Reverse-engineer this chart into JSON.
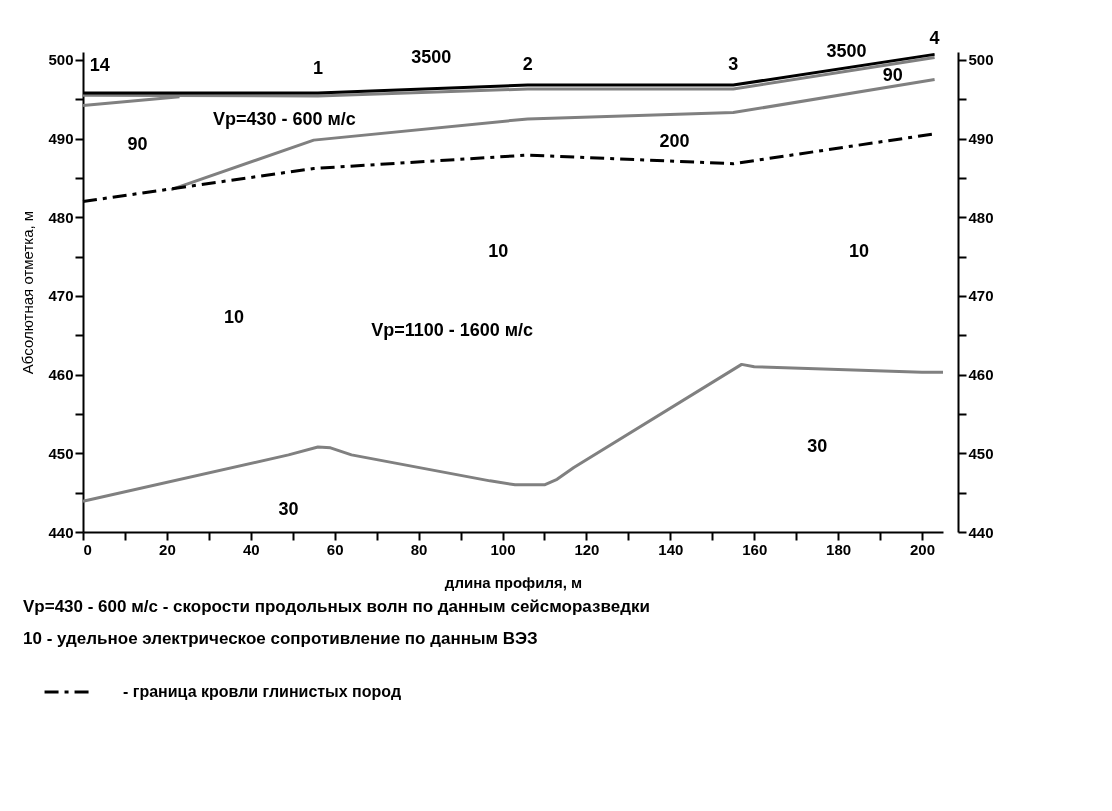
{
  "chart_data": {
    "type": "line",
    "xlabel": "длина профиля, м",
    "ylabel": "Абсолютная отметка, м",
    "xlim": [
      0,
      205
    ],
    "ylim": [
      440,
      501
    ],
    "y2lim": [
      440,
      501
    ],
    "xticks": [
      0,
      {
        "value": 10,
        "label": null
      },
      20,
      {
        "value": 30,
        "label": null
      },
      40,
      {
        "value": 50,
        "label": null
      },
      60,
      {
        "value": 70,
        "label": null
      },
      80,
      {
        "value": 90,
        "label": null
      },
      100,
      {
        "value": 110,
        "label": null
      },
      120,
      {
        "value": 130,
        "label": null
      },
      140,
      {
        "value": 150,
        "label": null
      },
      160,
      {
        "value": 170,
        "label": null
      },
      180,
      {
        "value": 190,
        "label": null
      },
      200
    ],
    "yticks": [
      440,
      {
        "value": 445,
        "label": null
      },
      450,
      {
        "value": 455,
        "label": null
      },
      460,
      {
        "value": 465,
        "label": null
      },
      470,
      {
        "value": 475,
        "label": null
      },
      480,
      {
        "value": 485,
        "label": null
      },
      490,
      {
        "value": 495,
        "label": null
      },
      500
    ],
    "y2ticks": [
      440,
      {
        "value": 445,
        "label": null
      },
      450,
      {
        "value": 455,
        "label": null
      },
      460,
      {
        "value": 465,
        "label": null
      },
      470,
      {
        "value": 475,
        "label": null
      },
      480,
      {
        "value": 485,
        "label": null
      },
      490,
      {
        "value": 495,
        "label": null
      },
      500
    ],
    "grid": false,
    "legend": "bottom",
    "marker": "none",
    "series": [
      {
        "color": "#000000",
        "axis": "y2",
        "line_style": "solid",
        "x": [
          0,
          56,
          106,
          155,
          203
        ],
        "values": [
          495.8,
          495.8,
          496.8,
          496.8,
          500.7
        ]
      },
      {
        "color": "#808080",
        "line_style": "solid",
        "x": [
          0,
          56,
          106,
          155,
          203
        ],
        "values": [
          495.5,
          495.4,
          496.3,
          496.3,
          500.3
        ]
      },
      {
        "color": "#808080",
        "line_style": "solid",
        "x": [
          0,
          23
        ],
        "values": [
          494.2,
          495.3
        ]
      },
      {
        "color": "#808080",
        "line_style": "solid",
        "x": [
          21,
          55,
          106,
          155,
          203
        ],
        "values": [
          483.5,
          489.8,
          492.5,
          493.3,
          497.5
        ]
      },
      {
        "name": "- граница кровли глинистых пород",
        "color": "#000000",
        "line_style": "dashdot",
        "x": [
          0,
          55,
          106,
          155,
          203
        ],
        "values": [
          482.0,
          486.2,
          487.9,
          486.8,
          490.6
        ]
      },
      {
        "color": "#808080",
        "line_style": "solid",
        "x": [
          0,
          49,
          56,
          59,
          64,
          97,
          103,
          110,
          113,
          117,
          157,
          160,
          200,
          205
        ],
        "values": [
          443.9,
          449.8,
          450.8,
          450.7,
          449.8,
          446.5,
          446.0,
          446.0,
          446.7,
          448.2,
          461.3,
          461.0,
          460.3,
          460.3
        ]
      }
    ],
    "annotations": [
      "14",
      "1",
      "2",
      "3",
      "4",
      "3500",
      "3500",
      "90",
      "90",
      "200",
      "10",
      "10",
      "10",
      "30",
      "30",
      "Vp=430 - 600 м/с",
      "Vp=1100 - 1600 м/с",
      "Vp=430 - 600 м/с - скорости продольных волн по данным сейсморазведки",
      "10 - удельное электрическое сопротивление по данным ВЭЗ"
    ]
  }
}
